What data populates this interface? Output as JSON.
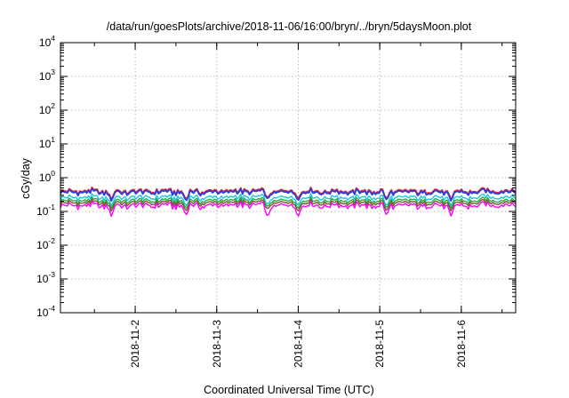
{
  "chart_data": {
    "type": "line",
    "title": "/data/run/goesPlots/archive/2018-11-06/16:00/bryn/../bryn/5daysMoon.plot",
    "xlabel": "Coordinated Universal Time (UTC)",
    "ylabel": "cGy/day",
    "yscale": "log",
    "ylim": [
      0.0001,
      10000
    ],
    "xlim": [
      "2018-11-01T02:00",
      "2018-11-06T16:00"
    ],
    "ytick_labels": [
      {
        "base": "10",
        "exp": "-4",
        "value": 0.0001
      },
      {
        "base": "10",
        "exp": "-3",
        "value": 0.001
      },
      {
        "base": "10",
        "exp": "-2",
        "value": 0.01
      },
      {
        "base": "10",
        "exp": "-1",
        "value": 0.1
      },
      {
        "base": "10",
        "exp": "0",
        "value": 1
      },
      {
        "base": "10",
        "exp": "1",
        "value": 10
      },
      {
        "base": "10",
        "exp": "2",
        "value": 100
      },
      {
        "base": "10",
        "exp": "3",
        "value": 1000
      },
      {
        "base": "10",
        "exp": "4",
        "value": 10000
      }
    ],
    "xticks": [
      {
        "label": "2018-11-2",
        "value": "2018-11-02T00:00"
      },
      {
        "label": "2018-11-3",
        "value": "2018-11-03T00:00"
      },
      {
        "label": "2018-11-4",
        "value": "2018-11-04T00:00"
      },
      {
        "label": "2018-11-5",
        "value": "2018-11-05T00:00"
      },
      {
        "label": "2018-11-6",
        "value": "2018-11-06T00:00"
      }
    ],
    "grid": true,
    "legend": "none",
    "series": [
      {
        "color": "#e8202a",
        "base_value": 0.4,
        "dips": [
          {
            "x": "2018-11-01T17:00",
            "value": 0.22
          },
          {
            "x": "2018-11-02T15:00",
            "value": 0.22
          },
          {
            "x": "2018-11-03T15:00",
            "value": 0.24
          },
          {
            "x": "2018-11-04T00:00",
            "value": 0.24
          },
          {
            "x": "2018-11-05T02:00",
            "value": 0.23
          },
          {
            "x": "2018-11-05T21:00",
            "value": 0.22
          }
        ]
      },
      {
        "color": "#2b3fe0",
        "base_value": 0.37,
        "dips": [
          {
            "x": "2018-11-01T17:00",
            "value": 0.2
          },
          {
            "x": "2018-11-02T15:00",
            "value": 0.2
          },
          {
            "x": "2018-11-03T15:00",
            "value": 0.22
          },
          {
            "x": "2018-11-04T00:00",
            "value": 0.21
          },
          {
            "x": "2018-11-05T02:00",
            "value": 0.21
          },
          {
            "x": "2018-11-05T21:00",
            "value": 0.2
          }
        ]
      },
      {
        "color": "#18c8d8",
        "base_value": 0.26,
        "dips": [
          {
            "x": "2018-11-01T17:00",
            "value": 0.14
          },
          {
            "x": "2018-11-02T15:00",
            "value": 0.14
          },
          {
            "x": "2018-11-03T15:00",
            "value": 0.15
          },
          {
            "x": "2018-11-04T00:00",
            "value": 0.15
          },
          {
            "x": "2018-11-05T02:00",
            "value": 0.14
          },
          {
            "x": "2018-11-05T21:00",
            "value": 0.14
          }
        ]
      },
      {
        "color": "#2aa84a",
        "base_value": 0.21,
        "dips": [
          {
            "x": "2018-11-01T17:00",
            "value": 0.12
          },
          {
            "x": "2018-11-02T15:00",
            "value": 0.12
          },
          {
            "x": "2018-11-03T15:00",
            "value": 0.13
          },
          {
            "x": "2018-11-04T00:00",
            "value": 0.12
          },
          {
            "x": "2018-11-05T02:00",
            "value": 0.12
          },
          {
            "x": "2018-11-05T21:00",
            "value": 0.12
          }
        ]
      },
      {
        "color": "#7a5a28",
        "base_value": 0.18,
        "dips": [
          {
            "x": "2018-11-01T17:00",
            "value": 0.1
          },
          {
            "x": "2018-11-02T15:00",
            "value": 0.1
          },
          {
            "x": "2018-11-03T15:00",
            "value": 0.11
          },
          {
            "x": "2018-11-04T00:00",
            "value": 0.1
          },
          {
            "x": "2018-11-05T02:00",
            "value": 0.1
          },
          {
            "x": "2018-11-05T21:00",
            "value": 0.1
          }
        ]
      },
      {
        "color": "#ff00ff",
        "base_value": 0.15,
        "dips": [
          {
            "x": "2018-11-01T17:00",
            "value": 0.07
          },
          {
            "x": "2018-11-02T15:00",
            "value": 0.075
          },
          {
            "x": "2018-11-03T15:00",
            "value": 0.065
          },
          {
            "x": "2018-11-04T00:00",
            "value": 0.07
          },
          {
            "x": "2018-11-05T02:00",
            "value": 0.075
          },
          {
            "x": "2018-11-05T21:00",
            "value": 0.07
          }
        ]
      }
    ]
  }
}
